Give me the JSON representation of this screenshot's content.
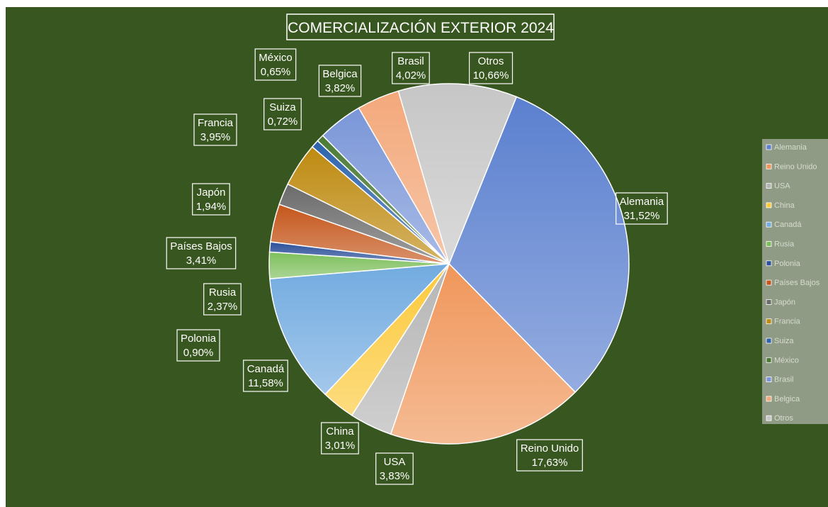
{
  "chart_data": {
    "type": "pie",
    "title": "COMERCIALIZACIÓN EXTERIOR 2024",
    "start_angle_deg": 22,
    "legend_position": "right",
    "slices": [
      {
        "name": "Alemania",
        "value": 31.52,
        "label": "31,52%",
        "color": "#5b80cf"
      },
      {
        "name": "Reino Unido",
        "value": 17.63,
        "label": "17,63%",
        "color": "#f0965a"
      },
      {
        "name": "USA",
        "value": 3.83,
        "label": "3,83%",
        "color": "#b5b5b5"
      },
      {
        "name": "China",
        "value": 3.01,
        "label": "3,01%",
        "color": "#fcc93a"
      },
      {
        "name": "Canadá",
        "value": 11.58,
        "label": "11,58%",
        "color": "#72abe0"
      },
      {
        "name": "Rusia",
        "value": 2.37,
        "label": "2,37%",
        "color": "#7dbf5c"
      },
      {
        "name": "Polonia",
        "value": 0.9,
        "label": "0,90%",
        "color": "#2c4f9a"
      },
      {
        "name": "Países Bajos",
        "value": 3.41,
        "label": "3,41%",
        "color": "#c5561b"
      },
      {
        "name": "Japón",
        "value": 1.94,
        "label": "1,94%",
        "color": "#6b6b6b"
      },
      {
        "name": "Francia",
        "value": 3.95,
        "label": "3,95%",
        "color": "#be8a10"
      },
      {
        "name": "Suiza",
        "value": 0.72,
        "label": "0,72%",
        "color": "#2d63ab"
      },
      {
        "name": "México",
        "value": 0.65,
        "label": "0,65%",
        "color": "#4a7a34"
      },
      {
        "name": "Brasil",
        "value": 4.02,
        "label": "4,02%",
        "color": "#7a96d8"
      },
      {
        "name": "Belgica",
        "value": 3.82,
        "label": "3,82%",
        "color": "#f3a87a"
      },
      {
        "name": "Otros",
        "value": 10.66,
        "label": "10,66%",
        "color": "#c6c6c6"
      }
    ]
  }
}
